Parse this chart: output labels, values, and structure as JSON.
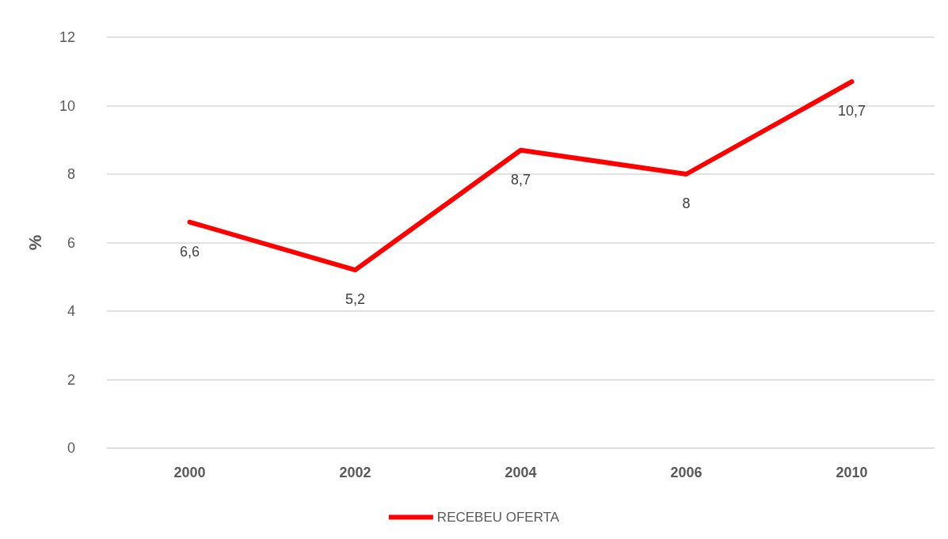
{
  "chart_data": {
    "type": "line",
    "ylabel": "%",
    "categories": [
      "2000",
      "2002",
      "2004",
      "2006",
      "2010"
    ],
    "series": [
      {
        "name": "RECEBEU OFERTA",
        "color": "#ff0000",
        "values": [
          6.6,
          5.2,
          8.7,
          8,
          10.7
        ],
        "value_labels": [
          "6,6",
          "5,2",
          "8,7",
          "8",
          "10,7"
        ]
      }
    ],
    "ylim": [
      0,
      12
    ],
    "yticks": [
      0,
      2,
      4,
      6,
      8,
      10,
      12
    ],
    "grid": "y",
    "legend": "bottom",
    "marker": "none",
    "line_style": "solid"
  }
}
